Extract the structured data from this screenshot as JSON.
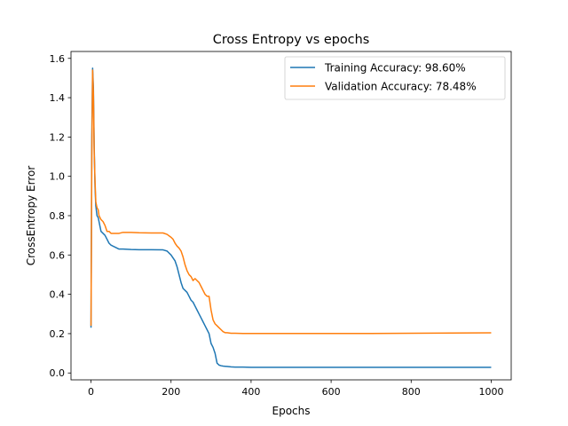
{
  "chart_data": {
    "type": "line",
    "title": "Cross Entropy vs epochs",
    "xlabel": "Epochs",
    "ylabel": "CrossEntropy Error",
    "xlim": [
      -50,
      1050
    ],
    "ylim": [
      -0.035,
      1.635
    ],
    "xticks": [
      0,
      200,
      400,
      600,
      800,
      1000
    ],
    "yticks": [
      0.0,
      0.2,
      0.4,
      0.6,
      0.8,
      1.0,
      1.2,
      1.4,
      1.6
    ],
    "xtick_labels": [
      "0",
      "200",
      "400",
      "600",
      "800",
      "1000"
    ],
    "ytick_labels": [
      "0.0",
      "0.2",
      "0.4",
      "0.6",
      "0.8",
      "1.0",
      "1.2",
      "1.4",
      "1.6"
    ],
    "grid": false,
    "legend": "top-right",
    "series": [
      {
        "name": "Training Accuracy: 98.60%",
        "color": "#1f77b4",
        "x": [
          0,
          2,
          4,
          6,
          8,
          10,
          12,
          15,
          18,
          20,
          25,
          30,
          35,
          40,
          45,
          50,
          60,
          70,
          80,
          100,
          120,
          150,
          180,
          190,
          200,
          210,
          215,
          220,
          225,
          230,
          235,
          240,
          245,
          250,
          255,
          260,
          265,
          270,
          275,
          280,
          285,
          290,
          295,
          300,
          305,
          310,
          315,
          320,
          325,
          330,
          340,
          350,
          360,
          380,
          400,
          500,
          600,
          700,
          800,
          900,
          1000
        ],
        "y": [
          0.23,
          1.2,
          1.55,
          1.45,
          1.15,
          0.95,
          0.85,
          0.8,
          0.79,
          0.77,
          0.72,
          0.71,
          0.7,
          0.68,
          0.66,
          0.65,
          0.64,
          0.63,
          0.63,
          0.628,
          0.627,
          0.627,
          0.626,
          0.62,
          0.6,
          0.57,
          0.54,
          0.5,
          0.46,
          0.43,
          0.42,
          0.41,
          0.39,
          0.37,
          0.36,
          0.34,
          0.32,
          0.3,
          0.28,
          0.26,
          0.24,
          0.22,
          0.2,
          0.15,
          0.13,
          0.1,
          0.05,
          0.04,
          0.037,
          0.035,
          0.033,
          0.031,
          0.03,
          0.03,
          0.029,
          0.029,
          0.029,
          0.029,
          0.029,
          0.029,
          0.029
        ]
      },
      {
        "name": "Validation Accuracy: 78.48%",
        "color": "#ff7f0e",
        "x": [
          0,
          2,
          4,
          6,
          8,
          10,
          12,
          15,
          18,
          20,
          25,
          30,
          35,
          40,
          45,
          50,
          60,
          70,
          80,
          100,
          120,
          150,
          180,
          190,
          200,
          205,
          210,
          215,
          220,
          225,
          230,
          235,
          240,
          245,
          250,
          255,
          260,
          265,
          270,
          275,
          280,
          285,
          290,
          295,
          300,
          305,
          310,
          315,
          320,
          325,
          330,
          335,
          340,
          350,
          360,
          380,
          400,
          500,
          600,
          700,
          800,
          900,
          1000
        ],
        "y": [
          0.24,
          1.1,
          1.54,
          1.42,
          1.12,
          0.98,
          0.87,
          0.84,
          0.83,
          0.8,
          0.78,
          0.77,
          0.75,
          0.72,
          0.72,
          0.71,
          0.71,
          0.71,
          0.715,
          0.715,
          0.713,
          0.712,
          0.712,
          0.705,
          0.69,
          0.68,
          0.66,
          0.645,
          0.635,
          0.62,
          0.59,
          0.55,
          0.52,
          0.5,
          0.49,
          0.47,
          0.48,
          0.47,
          0.46,
          0.44,
          0.42,
          0.4,
          0.39,
          0.39,
          0.32,
          0.27,
          0.25,
          0.24,
          0.23,
          0.22,
          0.21,
          0.205,
          0.205,
          0.202,
          0.202,
          0.201,
          0.201,
          0.201,
          0.201,
          0.201,
          0.202,
          0.203,
          0.204
        ]
      }
    ]
  }
}
